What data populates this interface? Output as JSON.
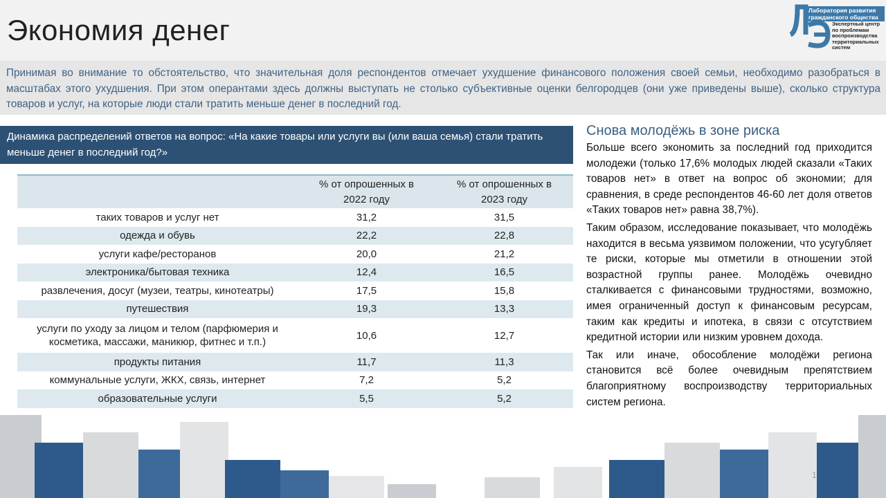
{
  "title": "Экономия денег",
  "logo": {
    "line1": "Лаборатория развития гражданского общества",
    "line2": "Экспертный центр по проблемам воспроизводства территориальных систем"
  },
  "intro": "Принимая во внимание то обстоятельство, что значительная доля респондентов отмечает ухудшение финансового положения своей семьи, необходимо разобраться в масштабах этого ухудшения. При этом оперантами здесь должны выступать не столько субъективные оценки белгородцев (они уже приведены выше), сколько структура товаров и услуг, на которые люди стали тратить меньше денег в последний год.",
  "table": {
    "caption": "Динамика распределений ответов на вопрос: «На какие товары или услуги вы (или ваша семья) стали тратить меньше денег в последний год?»",
    "headers": [
      "",
      "% от опрошенных в 2022 году",
      "% от опрошенных в 2023 году"
    ],
    "rows": [
      [
        "таких товаров и услуг нет",
        "31,2",
        "31,5"
      ],
      [
        "одежда и обувь",
        "22,2",
        "22,8"
      ],
      [
        "услуги кафе/ресторанов",
        "20,0",
        "21,2"
      ],
      [
        "электроника/бытовая техника",
        "12,4",
        "16,5"
      ],
      [
        "развлечения, досуг (музеи, театры, кинотеатры)",
        "17,5",
        "15,8"
      ],
      [
        "путешествия",
        "19,3",
        "13,3"
      ],
      [
        "услуги по уходу за лицом и телом (парфюмерия и косметика, массажи, маникюр, фитнес и т.п.)",
        "10,6",
        "12,7"
      ],
      [
        "продукты питания",
        "11,7",
        "11,3"
      ],
      [
        "коммунальные услуги, ЖКХ, связь, интернет",
        "7,2",
        "5,2"
      ],
      [
        "образовательные услуги",
        "5,5",
        "5,2"
      ]
    ]
  },
  "side": {
    "heading": "Снова молодёжь в зоне риска",
    "paragraphs": [
      "Больше всего экономить за последний год приходится молодежи (только 17,6% молодых людей сказали «Таких товаров нет» в ответ на вопрос об экономии; для сравнения, в среде респондентов 46-60 лет доля ответов «Таких товаров нет» равна 38,7%).",
      "Таким образом, исследование показывает, что молодёжь находится в весьма уязвимом положении, что усугубляет те риски, которые мы отметили в отношении этой возрастной группы ранее. Молодёжь очевидно сталкивается с финансовыми трудностями, возможно, имея ограниченный доступ к финансовым ресурсам, таким как кредиты и ипотека, в связи с отсутствием кредитной истории или низким уровнем дохода.",
      "Так или иначе, обособление молодёжи региона становится всё более очевидным препятствием благоприятному воспроизводству территориальных систем региона."
    ]
  },
  "page_number": "1"
}
